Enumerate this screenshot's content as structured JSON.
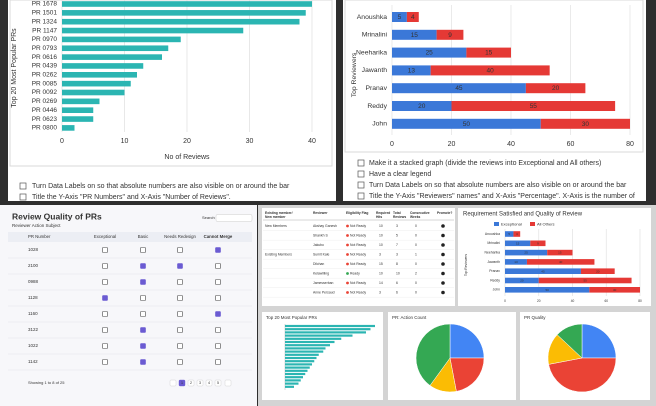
{
  "chart_data": [
    {
      "type": "bar",
      "ylabel": "Top 20 Most Popular PRs",
      "xlabel": "No of Reviews",
      "categories": [
        "PR 1678",
        "PR 1501",
        "PR 1324",
        "PR 1147",
        "PR 0970",
        "PR 0793",
        "PR 0616",
        "PR 0439",
        "PR 0262",
        "PR 0085",
        "PR 0092",
        "PR 0269",
        "PR 0446",
        "PR 0623",
        "PR 0800"
      ],
      "values": [
        40,
        39,
        38,
        29,
        19,
        17,
        16,
        13,
        12,
        11,
        10,
        6,
        5,
        5,
        2
      ],
      "color": "#2bb5b2",
      "xlim": [
        0,
        40
      ],
      "xticks": [
        0,
        10,
        20,
        30,
        40
      ],
      "grid": true
    },
    {
      "type": "stacked_bar",
      "title": "Requirement Satisfied and Quality of Review",
      "ylabel": "Top Reviewers",
      "categories": [
        "Anoushka",
        "Mrinalini",
        "Neeharika",
        "Jawanth",
        "Pranav",
        "Reddy",
        "John"
      ],
      "series": [
        {
          "name": "Exceptional",
          "color": "#3b78d8",
          "values": [
            5,
            15,
            25,
            13,
            45,
            20,
            50
          ]
        },
        {
          "name": "All Others",
          "color": "#e53935",
          "values": [
            4,
            9,
            15,
            40,
            20,
            55,
            30
          ]
        }
      ],
      "xlim": [
        0,
        80
      ],
      "xticks": [
        0,
        20,
        40,
        60,
        80
      ],
      "grid": true
    },
    {
      "type": "bar",
      "title": "Top 20 Most Popular PRs",
      "values": [
        40,
        38,
        36,
        30,
        25,
        22,
        20,
        18,
        17,
        15,
        14,
        13,
        12,
        11,
        10,
        9,
        8,
        7,
        6,
        4
      ],
      "color": "#2bb5b2",
      "xlim": [
        0,
        40
      ]
    },
    {
      "type": "pie",
      "title": "PR: Action Count",
      "values": [
        25,
        22,
        13,
        40
      ],
      "colors": [
        "#4285f4",
        "#ea4335",
        "#fbbc04",
        "#34a853"
      ]
    },
    {
      "type": "pie",
      "title": "PR Quality",
      "values": [
        25,
        47,
        15,
        13
      ],
      "colors": [
        "#4285f4",
        "#ea4335",
        "#fbbc04",
        "#34a853"
      ]
    }
  ],
  "checklists": {
    "popular_prs": [
      "Turn Data Labels on so that absolute numbers are also visible on or around the bar",
      "Title the Y-Axis \"PR Numbers\" and X-Axis \"Number of Reviews\"."
    ],
    "reviewers": [
      "Make it a stacked graph (divide the reviews into Exceptional and All others)",
      "Have a clear legend",
      "Turn Data Labels on so that absolute numbers are also visible on or around the bar",
      "Title the Y-Axis \"Reviewers\" names\" and X-Axis \"Percentage\". X-Axis is the number of"
    ]
  },
  "review_quality": {
    "title": "Review Quality of PRs",
    "subtitle": "Reviewer Action Subject",
    "search": "Search",
    "columns": [
      "PR Number",
      "Exceptional",
      "Basic",
      "Needs Redesign",
      "Cannot Merge"
    ],
    "rows": [
      {
        "pr": "1028",
        "checks": [
          false,
          false,
          false,
          true
        ]
      },
      {
        "pr": "2100",
        "checks": [
          false,
          true,
          true,
          false
        ]
      },
      {
        "pr": "0988",
        "checks": [
          false,
          true,
          false,
          false
        ]
      },
      {
        "pr": "1128",
        "checks": [
          true,
          false,
          false,
          false
        ]
      },
      {
        "pr": "1160",
        "checks": [
          false,
          false,
          false,
          true
        ]
      },
      {
        "pr": "3122",
        "checks": [
          false,
          true,
          false,
          false
        ]
      },
      {
        "pr": "1022",
        "checks": [
          false,
          true,
          false,
          false
        ]
      },
      {
        "pr": "1142",
        "checks": [
          false,
          true,
          false,
          false
        ]
      }
    ],
    "footer": "Showing 1 to 8 of 25",
    "pages": [
      "1",
      "2",
      "3",
      "4",
      "5"
    ]
  },
  "members_table": {
    "columns": [
      [
        "Existing member/",
        "New member"
      ],
      [
        "Reviewer"
      ],
      [
        "Eligibility Flag"
      ],
      [
        "Required",
        "Hits"
      ],
      [
        "Total",
        "Reviews"
      ],
      [
        "Consecutive",
        "Weeks"
      ],
      [
        "Promote?"
      ]
    ],
    "rows": [
      {
        "group": "New Members",
        "reviewer": "Akshay Ganesh",
        "flag": "Not Ready",
        "ready": false,
        "required": "10",
        "total": "3",
        "weeks": "0"
      },
      {
        "reviewer": "Shankh S",
        "flag": "Not Ready",
        "ready": false,
        "required": "10",
        "total": "5",
        "weeks": "0"
      },
      {
        "reviewer": "Jakubo",
        "flag": "Not Ready",
        "ready": false,
        "required": "10",
        "total": "7",
        "weeks": "0"
      },
      {
        "group": "Existing Members",
        "reviewer": "Sumit Kale",
        "flag": "Not Ready",
        "ready": false,
        "required": "3",
        "total": "3",
        "weeks": "1"
      },
      {
        "reviewer": "Dilchan",
        "flag": "Not Ready",
        "ready": false,
        "required": "15",
        "total": "8",
        "weeks": "0"
      },
      {
        "reviewer": "Kelawilling",
        "flag": "Ready",
        "ready": true,
        "required": "10",
        "total": "10",
        "weeks": "2"
      },
      {
        "reviewer": "Jamesserban",
        "flag": "Not Ready",
        "ready": false,
        "required": "14",
        "total": "6",
        "weeks": "0"
      },
      {
        "reviewer": "Anne Persaud",
        "flag": "Not Ready",
        "ready": false,
        "required": "3",
        "total": "6",
        "weeks": "0"
      }
    ]
  }
}
